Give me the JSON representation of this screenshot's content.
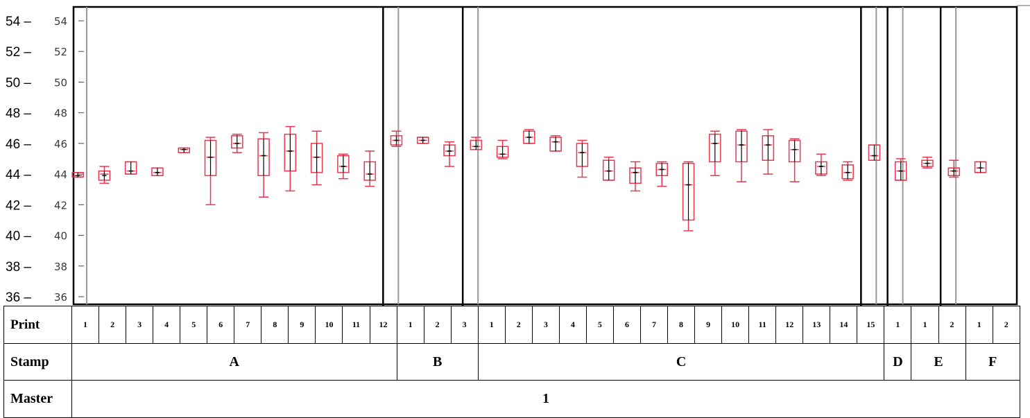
{
  "chart_data": {
    "type": "boxplot",
    "ylim": [
      36,
      54
    ],
    "yticks": [
      36,
      38,
      40,
      42,
      44,
      46,
      48,
      50,
      52,
      54
    ],
    "ytick_labels": [
      "36 –",
      "38 –",
      "40 –",
      "42 –",
      "44 –",
      "46 –",
      "48 –",
      "50 –",
      "52 –",
      "54 –"
    ],
    "ytick_labels_inner": [
      "36",
      "38",
      "40",
      "42",
      "44",
      "46",
      "48",
      "50",
      "52",
      "54"
    ],
    "colors": {
      "box": "#e8364f",
      "median": "#000000",
      "frame": "#000000",
      "gridline": "#999999"
    },
    "groups": [
      {
        "stamp": "A",
        "prints": [
          {
            "print": "1",
            "whisker_low": 43.8,
            "q1": 43.8,
            "median": 43.9,
            "mean": 43.9,
            "q3": 44.1,
            "whisker_high": 44.1
          },
          {
            "print": "2",
            "whisker_low": 43.4,
            "q1": 43.6,
            "median": 44.0,
            "mean": 43.9,
            "q3": 44.2,
            "whisker_high": 44.5
          },
          {
            "print": "3",
            "whisker_low": 44.0,
            "q1": 44.0,
            "median": 44.2,
            "mean": 44.2,
            "q3": 44.8,
            "whisker_high": 44.8
          },
          {
            "print": "4",
            "whisker_low": 43.9,
            "q1": 43.9,
            "median": 44.1,
            "mean": 44.1,
            "q3": 44.4,
            "whisker_high": 44.4
          },
          {
            "print": "5",
            "whisker_low": 45.4,
            "q1": 45.4,
            "median": 45.6,
            "mean": 45.6,
            "q3": 45.7,
            "whisker_high": 45.7
          },
          {
            "print": "6",
            "whisker_low": 42.0,
            "q1": 43.9,
            "median": 45.1,
            "mean": 45.1,
            "q3": 46.2,
            "whisker_high": 46.4
          },
          {
            "print": "7",
            "whisker_low": 45.4,
            "q1": 45.7,
            "median": 46.0,
            "mean": 46.0,
            "q3": 46.5,
            "whisker_high": 46.6
          },
          {
            "print": "8",
            "whisker_low": 42.5,
            "q1": 43.9,
            "median": 45.2,
            "mean": 45.2,
            "q3": 46.3,
            "whisker_high": 46.7
          },
          {
            "print": "9",
            "whisker_low": 42.9,
            "q1": 44.2,
            "median": 45.5,
            "mean": 45.5,
            "q3": 46.6,
            "whisker_high": 47.1
          },
          {
            "print": "10",
            "whisker_low": 43.3,
            "q1": 44.1,
            "median": 45.1,
            "mean": 45.1,
            "q3": 46.0,
            "whisker_high": 46.8
          },
          {
            "print": "11",
            "whisker_low": 43.7,
            "q1": 44.1,
            "median": 44.5,
            "mean": 44.5,
            "q3": 45.2,
            "whisker_high": 45.3
          },
          {
            "print": "12",
            "whisker_low": 43.2,
            "q1": 43.6,
            "median": 44.0,
            "mean": 44.0,
            "q3": 44.8,
            "whisker_high": 45.5
          }
        ]
      },
      {
        "stamp": "B",
        "prints": [
          {
            "print": "1",
            "whisker_low": 45.8,
            "q1": 45.9,
            "median": 46.2,
            "mean": 46.2,
            "q3": 46.5,
            "whisker_high": 46.8
          },
          {
            "print": "2",
            "whisker_low": 46.0,
            "q1": 46.0,
            "median": 46.2,
            "mean": 46.2,
            "q3": 46.4,
            "whisker_high": 46.4
          },
          {
            "print": "3",
            "whisker_low": 44.5,
            "q1": 45.2,
            "median": 45.5,
            "mean": 45.5,
            "q3": 45.9,
            "whisker_high": 46.1
          }
        ]
      },
      {
        "stamp": "C",
        "prints": [
          {
            "print": "1",
            "whisker_low": 45.6,
            "q1": 45.6,
            "median": 45.8,
            "mean": 45.8,
            "q3": 46.2,
            "whisker_high": 46.4
          },
          {
            "print": "2",
            "whisker_low": 45.0,
            "q1": 45.1,
            "median": 45.3,
            "mean": 45.3,
            "q3": 45.8,
            "whisker_high": 46.2
          },
          {
            "print": "3",
            "whisker_low": 46.0,
            "q1": 46.0,
            "median": 46.4,
            "mean": 46.4,
            "q3": 46.8,
            "whisker_high": 46.9
          },
          {
            "print": "4",
            "whisker_low": 45.5,
            "q1": 45.5,
            "median": 46.1,
            "mean": 46.1,
            "q3": 46.4,
            "whisker_high": 46.5
          },
          {
            "print": "5",
            "whisker_low": 43.8,
            "q1": 44.5,
            "median": 45.4,
            "mean": 45.4,
            "q3": 46.0,
            "whisker_high": 46.2
          },
          {
            "print": "6",
            "whisker_low": 43.6,
            "q1": 43.6,
            "median": 44.2,
            "mean": 44.2,
            "q3": 44.9,
            "whisker_high": 45.1
          },
          {
            "print": "7",
            "whisker_low": 42.9,
            "q1": 43.4,
            "median": 44.1,
            "mean": 44.1,
            "q3": 44.4,
            "whisker_high": 44.8
          },
          {
            "print": "8",
            "whisker_low": 43.2,
            "q1": 43.9,
            "median": 44.3,
            "mean": 44.3,
            "q3": 44.7,
            "whisker_high": 44.8
          },
          {
            "print": "9",
            "whisker_low": 40.3,
            "q1": 41.0,
            "median": 43.3,
            "mean": 43.3,
            "q3": 44.7,
            "whisker_high": 44.8
          },
          {
            "print": "10",
            "whisker_low": 43.9,
            "q1": 44.8,
            "median": 46.0,
            "mean": 46.0,
            "q3": 46.6,
            "whisker_high": 46.8
          },
          {
            "print": "11",
            "whisker_low": 43.5,
            "q1": 44.8,
            "median": 45.9,
            "mean": 45.9,
            "q3": 46.8,
            "whisker_high": 46.9
          },
          {
            "print": "12",
            "whisker_low": 44.0,
            "q1": 44.9,
            "median": 45.9,
            "mean": 45.9,
            "q3": 46.5,
            "whisker_high": 46.9
          },
          {
            "print": "13",
            "whisker_low": 43.5,
            "q1": 44.8,
            "median": 45.6,
            "mean": 45.6,
            "q3": 46.2,
            "whisker_high": 46.3
          },
          {
            "print": "14",
            "whisker_low": 43.9,
            "q1": 44.0,
            "median": 44.5,
            "mean": 44.5,
            "q3": 44.8,
            "whisker_high": 45.3
          },
          {
            "print": "15",
            "whisker_low": 43.6,
            "q1": 43.7,
            "median": 44.1,
            "mean": 44.1,
            "q3": 44.6,
            "whisker_high": 44.8
          }
        ]
      },
      {
        "stamp": "D",
        "prints": [
          {
            "print": "1",
            "whisker_low": 44.9,
            "q1": 44.9,
            "median": 45.2,
            "mean": 45.2,
            "q3": 45.9,
            "whisker_high": 45.9
          }
        ]
      },
      {
        "stamp": "E",
        "prints": [
          {
            "print": "1",
            "whisker_low": 43.6,
            "q1": 43.6,
            "median": 44.2,
            "mean": 44.2,
            "q3": 44.8,
            "whisker_high": 45.0
          },
          {
            "print": "2",
            "whisker_low": 44.4,
            "q1": 44.5,
            "median": 44.7,
            "mean": 44.7,
            "q3": 44.9,
            "whisker_high": 45.1
          }
        ]
      },
      {
        "stamp": "F",
        "prints": [
          {
            "print": "1",
            "whisker_low": 43.8,
            "q1": 43.9,
            "median": 44.2,
            "mean": 44.2,
            "q3": 44.4,
            "whisker_high": 44.9
          },
          {
            "print": "2",
            "whisker_low": 44.1,
            "q1": 44.1,
            "median": 44.4,
            "mean": 44.4,
            "q3": 44.8,
            "whisker_high": 44.8
          }
        ]
      }
    ]
  },
  "table": {
    "print_label": "Print",
    "stamp_label": "Stamp",
    "master_label": "Master",
    "master_value": "1"
  }
}
